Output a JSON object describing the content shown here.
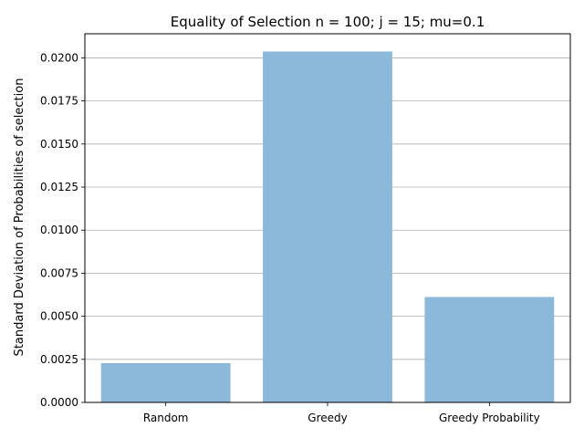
{
  "chart_data": {
    "type": "bar",
    "title": "Equality of Selection n = 100; j = 15; mu=0.1",
    "xlabel": "",
    "ylabel": "Standard Deviation of Probabilities of selection",
    "categories": [
      "Random",
      "Greedy",
      "Greedy Probability"
    ],
    "values": [
      0.00228,
      0.02037,
      0.00612
    ],
    "ylim": [
      0,
      0.0214
    ],
    "yticks": [
      "0.0000",
      "0.0025",
      "0.0050",
      "0.0075",
      "0.0100",
      "0.0125",
      "0.0150",
      "0.0175",
      "0.0200"
    ],
    "grid": "horizontal",
    "bar_color": "#8cb9da"
  }
}
